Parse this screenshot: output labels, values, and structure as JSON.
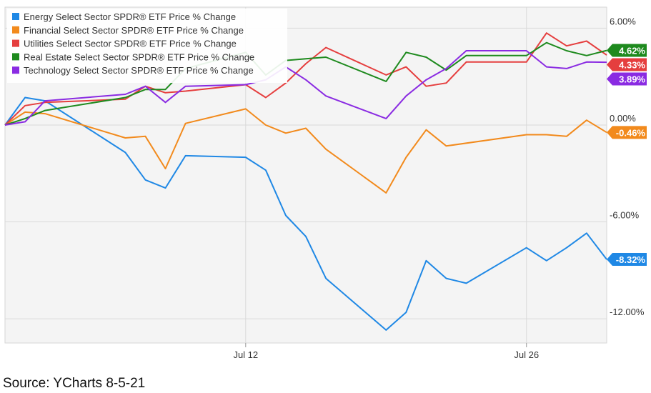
{
  "chart_data": {
    "type": "line",
    "x": [
      1,
      2,
      3,
      4,
      5,
      6,
      7,
      8,
      9,
      10,
      11,
      12,
      13,
      14,
      15,
      16,
      17,
      18,
      19,
      20,
      21,
      22,
      23,
      24,
      25,
      26,
      27,
      28,
      29,
      30,
      31
    ],
    "x_ticks": [
      {
        "x": 13,
        "label": "Jul 12"
      },
      {
        "x": 27,
        "label": "Jul 26"
      }
    ],
    "ylim": [
      -13.5,
      7.3
    ],
    "y_ticks": [
      {
        "value": 6,
        "label": "6.00%"
      },
      {
        "value": 0,
        "label": "0.00%"
      },
      {
        "value": -6,
        "label": "-6.00%"
      },
      {
        "value": -12,
        "label": "-12.00%"
      }
    ],
    "grid": true,
    "legend_position": "top-left",
    "series": [
      {
        "name": "Energy Select Sector SPDR® ETF Price % Change",
        "color": "#1f88e5",
        "values": [
          0,
          1.7,
          1.5,
          null,
          null,
          null,
          -1.7,
          -3.4,
          -3.9,
          -1.9,
          null,
          null,
          -2.0,
          -2.8,
          -5.6,
          -6.9,
          -9.5,
          null,
          null,
          -12.7,
          -11.6,
          -8.4,
          -9.5,
          -9.8,
          null,
          null,
          -7.6,
          -8.4,
          -7.6,
          -6.7,
          -8.32
        ]
      },
      {
        "name": "Financial Select Sector SPDR® ETF Price % Change",
        "color": "#f28a1c",
        "values": [
          0,
          0.8,
          0.7,
          null,
          null,
          null,
          -0.8,
          -0.7,
          -2.7,
          0.1,
          null,
          null,
          1.0,
          0.0,
          -0.5,
          -0.2,
          -1.5,
          null,
          null,
          -4.2,
          -2.0,
          -0.3,
          -1.3,
          null,
          null,
          null,
          -0.6,
          -0.6,
          -0.7,
          0.3,
          -0.46
        ]
      },
      {
        "name": "Utilities Select Sector SPDR® ETF Price % Change",
        "color": "#e53e3e",
        "values": [
          0,
          1.2,
          1.4,
          null,
          null,
          null,
          1.6,
          2.4,
          2.0,
          2.1,
          null,
          null,
          2.5,
          1.7,
          2.6,
          3.8,
          4.8,
          null,
          null,
          3.1,
          3.6,
          2.4,
          2.6,
          3.9,
          null,
          null,
          3.9,
          5.7,
          4.9,
          5.2,
          4.33
        ]
      },
      {
        "name": "Real Estate Select Sector SPDR® ETF Price % Change",
        "color": "#1e8a1e",
        "values": [
          0,
          0.4,
          0.9,
          null,
          null,
          null,
          1.7,
          2.2,
          2.2,
          3.5,
          null,
          null,
          4.5,
          3.1,
          4.0,
          4.1,
          4.2,
          null,
          null,
          2.7,
          4.5,
          4.2,
          3.4,
          4.3,
          null,
          null,
          4.3,
          5.1,
          4.6,
          4.3,
          4.62
        ]
      },
      {
        "name": "Technology Select Sector SPDR® ETF Price % Change",
        "color": "#8a2be2",
        "values": [
          0,
          0.2,
          1.5,
          null,
          null,
          null,
          1.9,
          2.4,
          1.4,
          2.4,
          null,
          null,
          2.5,
          2.8,
          3.6,
          2.8,
          1.8,
          null,
          null,
          0.4,
          1.8,
          2.8,
          3.5,
          4.6,
          null,
          null,
          4.6,
          3.6,
          3.5,
          3.9,
          3.89
        ]
      }
    ],
    "end_labels": [
      {
        "series": 3,
        "value": 4.62,
        "text": "4.62%"
      },
      {
        "series": 2,
        "value": 4.33,
        "text": "4.33%"
      },
      {
        "series": 4,
        "value": 3.89,
        "text": "3.89%"
      },
      {
        "series": 1,
        "value": -0.46,
        "text": "-0.46%"
      },
      {
        "series": 0,
        "value": -8.32,
        "text": "-8.32%"
      }
    ]
  },
  "source_text": "Source: YCharts 8-5-21"
}
